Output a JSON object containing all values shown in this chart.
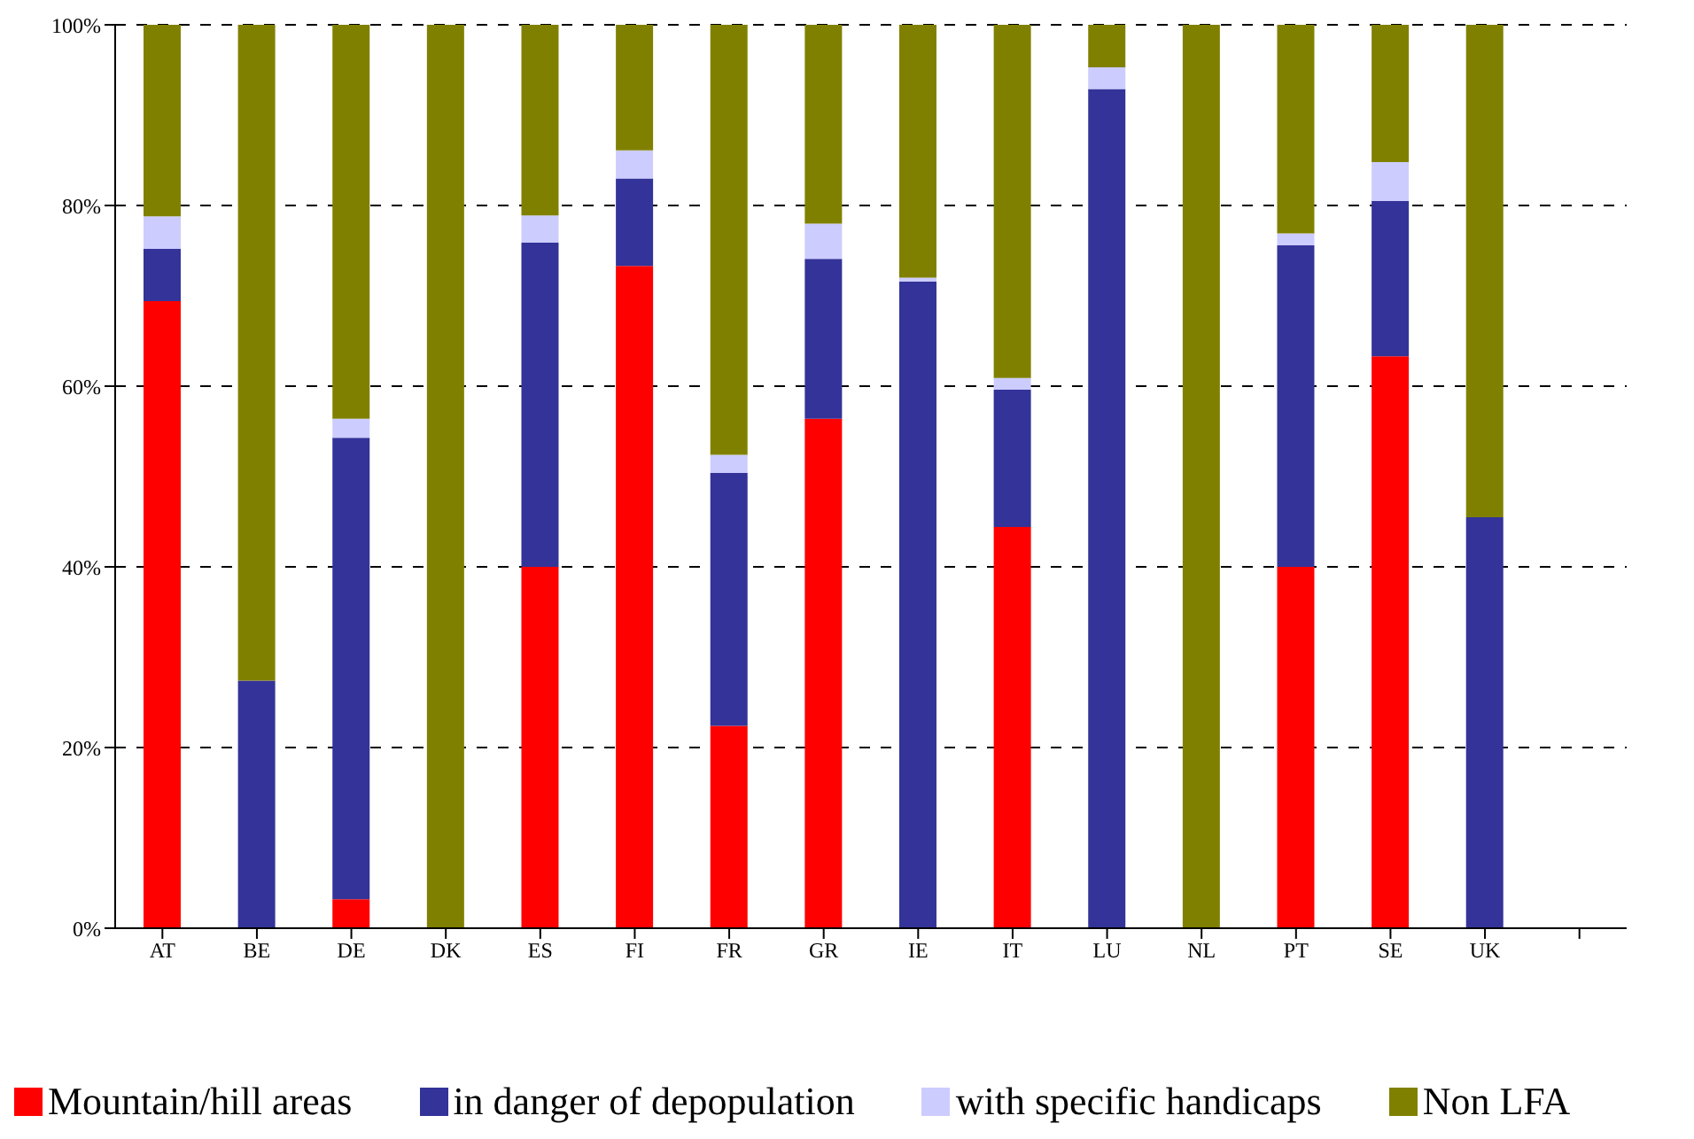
{
  "chart_data": {
    "type": "bar",
    "stacked": true,
    "categories": [
      "AT",
      "BE",
      "DE",
      "DK",
      "ES",
      "FI",
      "FR",
      "GR",
      "IE",
      "IT",
      "LU",
      "NL",
      "PT",
      "SE",
      "UK",
      null
    ],
    "series": [
      {
        "name": "Mountain/hill areas",
        "color": "#ff0000",
        "values": [
          69.4,
          0,
          3.2,
          0,
          40,
          73.3,
          22.4,
          56.4,
          0,
          44.4,
          0,
          0,
          40,
          63.3,
          0,
          null
        ]
      },
      {
        "name": "in danger of depopulation",
        "color": "#333399",
        "values": [
          5.8,
          27.4,
          51.1,
          0,
          35.9,
          9.7,
          28,
          17.7,
          71.6,
          15.2,
          92.9,
          0,
          35.6,
          17.2,
          45.5,
          null
        ]
      },
      {
        "name": "with specific handicaps",
        "color": "#ccccff",
        "values": [
          3.6,
          0,
          2.1,
          0,
          3,
          3.1,
          2,
          3.9,
          0.4,
          1.3,
          2.4,
          0,
          1.3,
          4.3,
          0,
          null
        ]
      },
      {
        "name": "Non LFA",
        "color": "#808000",
        "values": [
          21.2,
          72.6,
          43.6,
          100,
          21.1,
          13.9,
          47.6,
          22,
          28,
          39.1,
          4.7,
          100,
          23.1,
          15.2,
          54.5,
          null
        ]
      }
    ],
    "ylim": [
      0,
      100
    ],
    "yticks": [
      {
        "value": 0,
        "label": "0%"
      },
      {
        "value": 20,
        "label": "20%"
      },
      {
        "value": 40,
        "label": "40%"
      },
      {
        "value": 60,
        "label": "60%"
      },
      {
        "value": 80,
        "label": "80%"
      },
      {
        "value": 100,
        "label": "100%"
      }
    ],
    "grid": "y",
    "legend": "bottom"
  }
}
